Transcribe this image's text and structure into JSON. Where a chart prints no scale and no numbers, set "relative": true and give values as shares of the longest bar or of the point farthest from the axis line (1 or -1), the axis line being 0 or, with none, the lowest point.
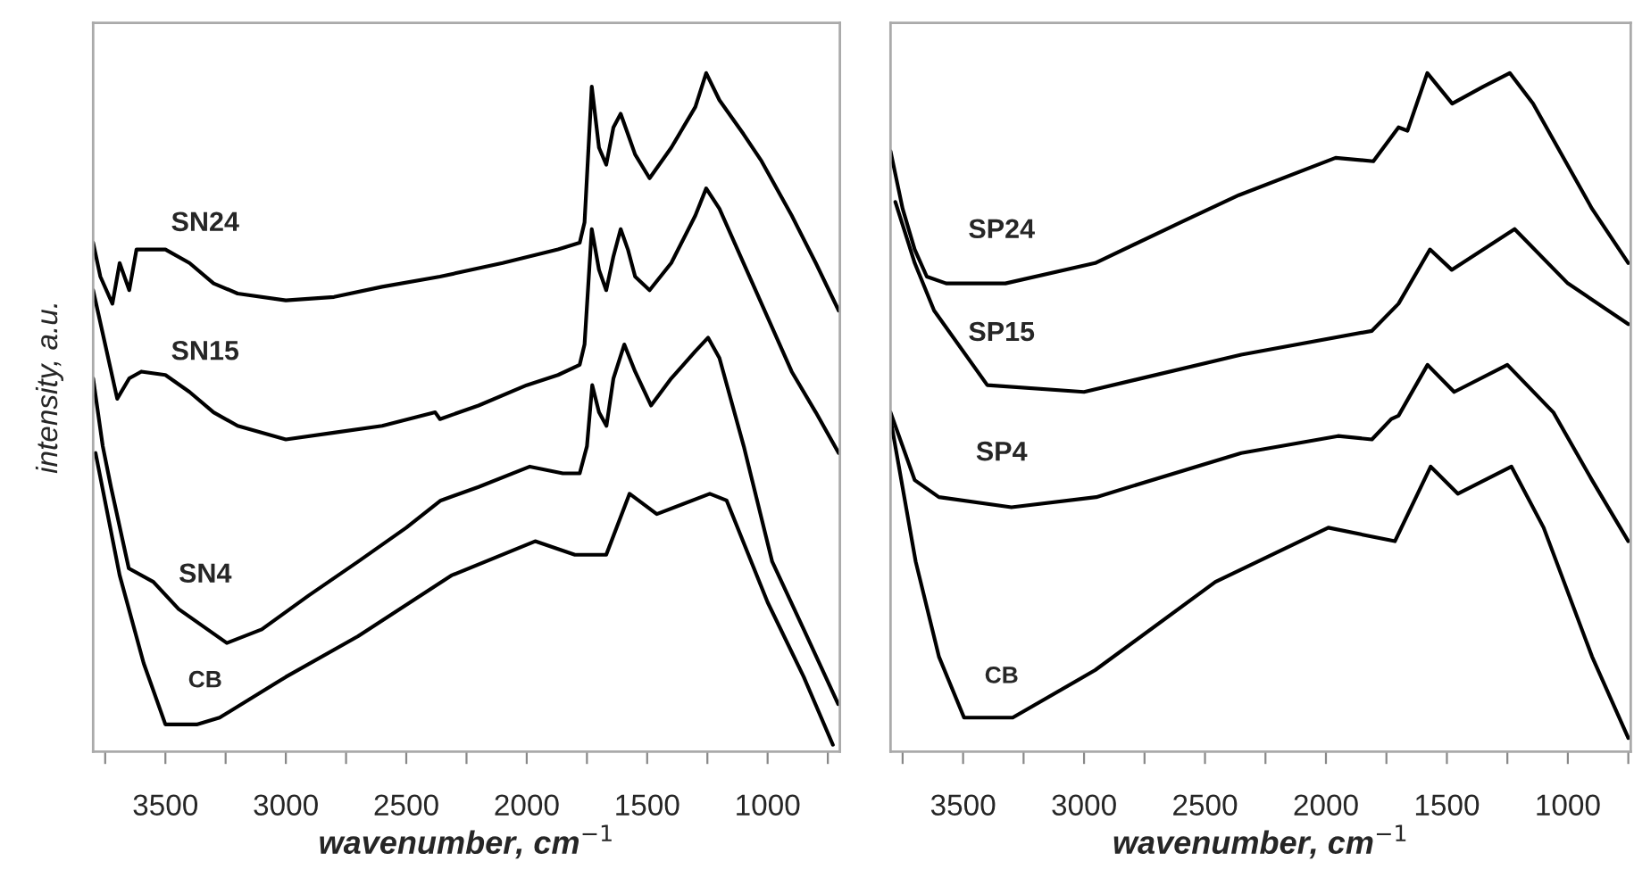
{
  "chart_data": [
    {
      "type": "line",
      "relative": true,
      "xlabel": "wavenumber, cm$^{−1}$",
      "ylabel": "intensity, a.u.",
      "xlim": [
        3800,
        700
      ],
      "tick_labels": "x",
      "grid": false,
      "legend": false,
      "marker": "none",
      "line_style": "solid",
      "xticks": [
        {
          "value": 3750,
          "label": null
        },
        3500,
        {
          "value": 3250,
          "label": null
        },
        3000,
        {
          "value": 2750,
          "label": null
        },
        2500,
        {
          "value": 2250,
          "label": null
        },
        2000,
        {
          "value": 1750,
          "label": null
        },
        1500,
        {
          "value": 1250,
          "label": null
        },
        1000,
        {
          "value": 750,
          "label": null
        }
      ],
      "series": [
        {
          "name": "SN24",
          "color": "#000000",
          "x": [
            3800,
            3770,
            3720,
            3690,
            3650,
            3620,
            3560,
            3500,
            3400,
            3300,
            3200,
            3000,
            2800,
            2600,
            2360,
            2100,
            1870,
            1780,
            1760,
            1730,
            1700,
            1670,
            1640,
            1610,
            1580,
            1550,
            1490,
            1400,
            1300,
            1255,
            1200,
            1100,
            1025,
            900,
            800,
            705
          ],
          "values": [
            0.75,
            0.7,
            0.66,
            0.72,
            0.68,
            0.74,
            0.74,
            0.74,
            0.72,
            0.69,
            0.675,
            0.665,
            0.67,
            0.685,
            0.7,
            0.72,
            0.74,
            0.75,
            0.78,
            0.98,
            0.89,
            0.865,
            0.92,
            0.94,
            0.91,
            0.88,
            0.845,
            0.89,
            0.95,
            1.0,
            0.96,
            0.91,
            0.87,
            0.79,
            0.72,
            0.65
          ]
        },
        {
          "name": "SN15",
          "color": "#000000",
          "x": [
            3800,
            3750,
            3700,
            3650,
            3600,
            3500,
            3400,
            3300,
            3200,
            3000,
            2800,
            2600,
            2380,
            2360,
            2200,
            2000,
            1870,
            1780,
            1760,
            1730,
            1700,
            1670,
            1640,
            1610,
            1580,
            1550,
            1490,
            1400,
            1300,
            1255,
            1200,
            1100,
            1000,
            900,
            800,
            705
          ],
          "values": [
            0.68,
            0.6,
            0.52,
            0.55,
            0.56,
            0.555,
            0.53,
            0.5,
            0.48,
            0.46,
            0.47,
            0.48,
            0.5,
            0.49,
            0.51,
            0.54,
            0.555,
            0.57,
            0.6,
            0.77,
            0.71,
            0.68,
            0.73,
            0.77,
            0.74,
            0.7,
            0.68,
            0.72,
            0.79,
            0.83,
            0.8,
            0.72,
            0.64,
            0.56,
            0.5,
            0.44
          ]
        },
        {
          "name": "SN4",
          "color": "#000000",
          "x": [
            3800,
            3760,
            3726,
            3652,
            3550,
            3445,
            3245,
            3100,
            2905,
            2700,
            2500,
            2357,
            2200,
            1987,
            1850,
            1780,
            1750,
            1728,
            1700,
            1669,
            1640,
            1595,
            1550,
            1484,
            1400,
            1300,
            1247,
            1200,
            1099,
            981,
            850,
            707
          ],
          "values": [
            0.55,
            0.45,
            0.39,
            0.27,
            0.25,
            0.21,
            0.16,
            0.18,
            0.23,
            0.28,
            0.33,
            0.37,
            0.39,
            0.42,
            0.41,
            0.41,
            0.45,
            0.54,
            0.5,
            0.48,
            0.55,
            0.6,
            0.56,
            0.51,
            0.55,
            0.59,
            0.61,
            0.58,
            0.45,
            0.28,
            0.18,
            0.07
          ]
        },
        {
          "name": "CB",
          "color": "#000000",
          "x": [
            3790,
            3690,
            3590,
            3500,
            3370,
            3275,
            3000,
            2700,
            2310,
            1965,
            1800,
            1670,
            1573,
            1460,
            1240,
            1170,
            1000,
            850,
            729
          ],
          "values": [
            0.44,
            0.26,
            0.13,
            0.04,
            0.04,
            0.05,
            0.11,
            0.17,
            0.26,
            0.31,
            0.29,
            0.29,
            0.38,
            0.35,
            0.38,
            0.37,
            0.22,
            0.11,
            0.01
          ]
        }
      ]
    },
    {
      "type": "line",
      "relative": true,
      "xlabel": "wavenumber, cm$^{−1}$",
      "xlim": [
        3800,
        740
      ],
      "tick_labels": "x",
      "grid": false,
      "legend": false,
      "marker": "none",
      "line_style": "solid",
      "xticks": [
        {
          "value": 3750,
          "label": null
        },
        3500,
        {
          "value": 3250,
          "label": null
        },
        3000,
        {
          "value": 2750,
          "label": null
        },
        2500,
        {
          "value": 2250,
          "label": null
        },
        2000,
        {
          "value": 1750,
          "label": null
        },
        1500,
        {
          "value": 1250,
          "label": null
        },
        1000,
        {
          "value": 750,
          "label": null
        }
      ],
      "series": [
        {
          "name": "SP24",
          "color": "#000000",
          "x": [
            3800,
            3750,
            3700,
            3650,
            3570,
            3325,
            2954,
            2600,
            2360,
            1960,
            1804,
            1700,
            1663,
            1581,
            1478,
            1350,
            1240,
            1144,
            900,
            750
          ],
          "values": [
            0.885,
            0.8,
            0.74,
            0.7,
            0.69,
            0.69,
            0.72,
            0.78,
            0.82,
            0.875,
            0.87,
            0.92,
            0.915,
            1.0,
            0.955,
            0.98,
            1.0,
            0.955,
            0.8,
            0.72
          ]
        },
        {
          "name": "SP15",
          "color": "#000000",
          "x": [
            3780,
            3700,
            3620,
            3400,
            3000,
            2350,
            1810,
            1700,
            1570,
            1480,
            1220,
            1000,
            750
          ],
          "values": [
            0.81,
            0.72,
            0.65,
            0.54,
            0.53,
            0.585,
            0.62,
            0.66,
            0.74,
            0.71,
            0.77,
            0.69,
            0.63
          ]
        },
        {
          "name": "SP4",
          "color": "#000000",
          "x": [
            3800,
            3700,
            3600,
            3300,
            2950,
            2350,
            1950,
            1810,
            1730,
            1700,
            1580,
            1470,
            1250,
            1060,
            900,
            750
          ],
          "values": [
            0.5,
            0.4,
            0.375,
            0.36,
            0.375,
            0.44,
            0.465,
            0.46,
            0.49,
            0.495,
            0.57,
            0.53,
            0.57,
            0.5,
            0.4,
            0.31
          ]
        },
        {
          "name": "CB",
          "color": "#000000",
          "x": [
            3800,
            3696,
            3600,
            3496,
            3295,
            2954,
            2457,
            1990,
            1715,
            1567,
            1455,
            1233,
            1100,
            900,
            750
          ],
          "values": [
            0.49,
            0.28,
            0.14,
            0.05,
            0.05,
            0.12,
            0.25,
            0.33,
            0.31,
            0.42,
            0.38,
            0.42,
            0.33,
            0.14,
            0.02
          ]
        }
      ]
    }
  ]
}
